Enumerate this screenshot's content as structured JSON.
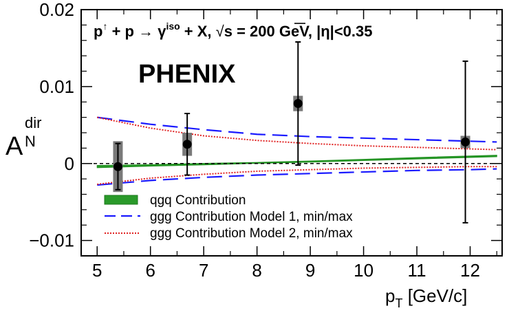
{
  "chart_data": {
    "type": "scatter",
    "title": "p↑ + p → γiso + X,  √s = 200 GeV, |η|<0.35",
    "title_parts": {
      "beam": "p",
      "beam_sup": "↑",
      "plus_p_arrow": " + p  →  γ",
      "photon_sup": "iso",
      "rest_a": " + X,  ",
      "sqrt_symbol": "√",
      "energy": "s = 200 GeV, |η|<0.35"
    },
    "experiment_label": "PHENIX",
    "xlabel": "p",
    "xlabel_sub": "T",
    "xlabel_unit": " [GeV/c]",
    "ylabel": "A",
    "ylabel_sup": "dir",
    "ylabel_sub": "N",
    "xlim": [
      4.7,
      12.6
    ],
    "ylim": [
      -0.012,
      0.02
    ],
    "x_ticks": [
      5,
      6,
      7,
      8,
      9,
      10,
      11,
      12
    ],
    "x_tick_labels": [
      "5",
      "6",
      "7",
      "8",
      "9",
      "10",
      "11",
      "12"
    ],
    "y_ticks": [
      -0.01,
      0,
      0.01,
      0.02
    ],
    "y_tick_labels": [
      "−0.01",
      "0",
      "0.01",
      "0.02"
    ],
    "data": {
      "name": "PHENIX",
      "points": [
        {
          "x": 5.39,
          "y": -0.0004,
          "stat_err": 0.003,
          "sys_err": 0.0033
        },
        {
          "x": 6.69,
          "y": 0.0025,
          "stat_err": 0.004,
          "sys_err": 0.0015
        },
        {
          "x": 8.77,
          "y": 0.0078,
          "stat_err": 0.008,
          "sys_err": 0.001
        },
        {
          "x": 11.91,
          "y": 0.0028,
          "stat_err": 0.0105,
          "sys_err": 0.0008
        }
      ]
    },
    "series": [
      {
        "name": "qgq Contribution",
        "style": "band",
        "color": "#1f8f1f",
        "x": [
          5,
          6,
          7,
          8,
          9,
          10,
          11,
          12,
          12.5
        ],
        "lower": [
          -0.00055,
          -0.00035,
          -0.00018,
          2e-05,
          0.00018,
          0.00038,
          0.00058,
          0.00078,
          0.00088
        ],
        "upper": [
          -0.00025,
          -0.00015,
          2e-05,
          0.00015,
          0.00033,
          0.00055,
          0.00078,
          0.00098,
          0.00108
        ]
      },
      {
        "name": "ggg Contribution Model 1, min/max",
        "style": "dashed",
        "color": "#1a1aff",
        "x": [
          5,
          6,
          7,
          8,
          9,
          10,
          11,
          12,
          12.5
        ],
        "max": [
          0.006,
          0.0051,
          0.0044,
          0.0038,
          0.0035,
          0.0033,
          0.0031,
          0.0029,
          0.0028
        ],
        "min": [
          -0.0028,
          -0.0022,
          -0.0018,
          -0.0015,
          -0.0013,
          -0.0011,
          -0.0009,
          -0.0008,
          -0.0007
        ]
      },
      {
        "name": "ggg Contribution Model 2, min/max",
        "style": "dotted",
        "color": "#e02020",
        "x": [
          5,
          6,
          7,
          8,
          9,
          10,
          11,
          12,
          12.5
        ],
        "max": [
          0.006,
          0.0046,
          0.0036,
          0.003,
          0.0026,
          0.0023,
          0.0021,
          0.0019,
          0.0018
        ],
        "min": [
          -0.0027,
          -0.0019,
          -0.0014,
          -0.001,
          -0.0008,
          -0.0006,
          -0.0005,
          -0.0004,
          -0.0004
        ]
      }
    ],
    "zero_line": {
      "y": 0,
      "style": "dashed",
      "color": "#000000"
    },
    "legend_position": "bottom-left",
    "grid": false
  }
}
